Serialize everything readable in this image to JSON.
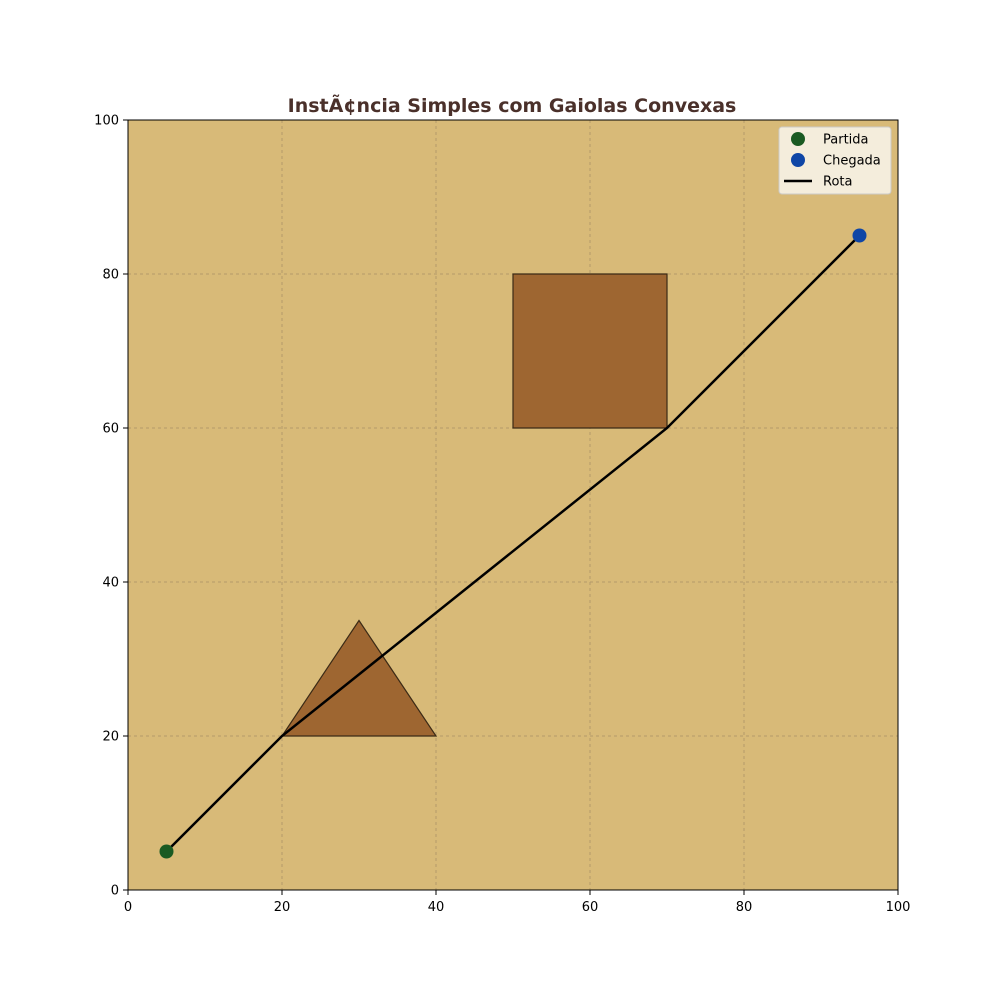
{
  "chart_data": {
    "type": "scatter",
    "title": "InstÃ¢ncia Simples com Gaiolas Convexas",
    "xlabel": "",
    "ylabel": "",
    "xlim": [
      0,
      100
    ],
    "ylim": [
      0,
      100
    ],
    "xticks": [
      "0",
      "20",
      "40",
      "60",
      "80",
      "100"
    ],
    "yticks": [
      "0",
      "20",
      "40",
      "60",
      "80",
      "100"
    ],
    "grid": true,
    "legend_position": "top-right",
    "obstacles": [
      {
        "shape": "triangle",
        "points": [
          [
            20,
            20
          ],
          [
            40,
            20
          ],
          [
            30,
            35
          ]
        ]
      },
      {
        "shape": "square",
        "points": [
          [
            50,
            60
          ],
          [
            70,
            60
          ],
          [
            70,
            80
          ],
          [
            50,
            80
          ]
        ]
      }
    ],
    "series": [
      {
        "name": "Partida",
        "kind": "point",
        "x": [
          5
        ],
        "y": [
          5
        ]
      },
      {
        "name": "Chegada",
        "kind": "point",
        "x": [
          95
        ],
        "y": [
          85
        ]
      },
      {
        "name": "Rota",
        "kind": "line",
        "x": [
          5,
          20,
          70,
          95
        ],
        "y": [
          5,
          20,
          60,
          85
        ]
      }
    ]
  },
  "colors": {
    "background": "#d8ba78",
    "obstacle_fill": "#9e6631",
    "obstacle_edge": "#3b2a16",
    "grid": "#b49a6a",
    "start_marker": "#1a5a22",
    "end_marker": "#0f46a6",
    "route": "#000000",
    "title": "#4a302a",
    "legend_bg": "#f6f0e2"
  }
}
